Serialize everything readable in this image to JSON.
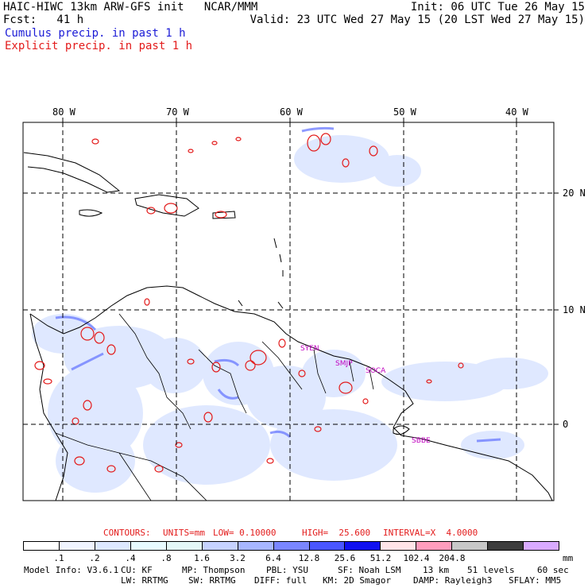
{
  "header": {
    "left_line1": "HAIC-HIWC 13km ARW-GFS init   NCAR/MMM",
    "left_line2": "Fcst:   41 h",
    "right_line1": "Init: 06 UTC Tue 26 May 15",
    "right_line2": "Valid: 23 UTC Wed 27 May 15 (20 LST Wed 27 May 15)"
  },
  "legend": {
    "cumulus": "Cumulus precip. in past 1 h",
    "explicit": "Explicit precip. in past 1 h",
    "cumulus_color": "#1b1bd6",
    "explicit_color": "#e31b1b"
  },
  "map": {
    "lon_labels": [
      "80 W",
      "70 W",
      "60 W",
      "50 W",
      "40 W"
    ],
    "lat_labels": [
      "20 N",
      "10 N",
      "0"
    ],
    "station_labels": [
      "SYEN",
      "SMJP",
      "SOCA",
      "SBBE"
    ],
    "station_color": "#c000c0",
    "grid": "dashed",
    "land_color": "#000000"
  },
  "contours": {
    "title": "CONTOURS:",
    "units": "UNITS=mm",
    "low": "LOW= 0.10000",
    "high": "HIGH=  25.600",
    "interval": "INTERVAL=X  4.0000"
  },
  "colorbar": {
    "colors": [
      "#ffffff",
      "#f0f4ff",
      "#dde8ff",
      "#e8fbff",
      "#e4f7f7",
      "#c6d2ff",
      "#a7b6ff",
      "#7a86ff",
      "#4a56ff",
      "#1010f0",
      "#ffe4e8",
      "#ff9dbd",
      "#c8c8c8",
      "#3c3c3c",
      "#d9aaff"
    ],
    "tick_labels": [
      ".1",
      ".2",
      ".4",
      ".8",
      "1.6",
      "3.2",
      "6.4",
      "12.8",
      "25.6",
      "51.2",
      "102.4",
      "204.8"
    ],
    "units": "mm"
  },
  "footer": {
    "line1": [
      "Model Info: V3.6.1",
      "CU: KF",
      "MP: Thompson",
      "PBL: YSU",
      "SF: Noah LSM",
      "13 km",
      "51 levels",
      "60 sec"
    ],
    "line2": [
      "LW: RRTMG",
      "SW: RRTMG",
      "DIFF: full",
      "KM: 2D Smagor",
      "DAMP: Rayleigh3",
      "SFLAY: MM5"
    ]
  }
}
